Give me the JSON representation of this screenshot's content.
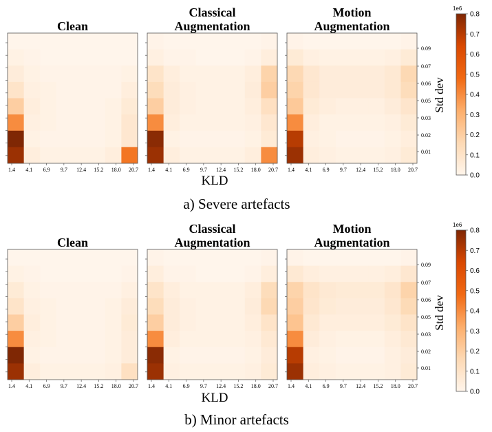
{
  "figure": {
    "subfigures": [
      {
        "caption": "a) Severe artefacts"
      },
      {
        "caption": "b) Minor artefacts"
      }
    ],
    "xlabel": "KLD",
    "ylabel": "Std dev",
    "colorbar_label": "1e6",
    "colorbar_ticks": [
      "0.0",
      "0.1",
      "0.2",
      "0.3",
      "0.4",
      "0.5",
      "0.6",
      "0.7",
      "0.8"
    ],
    "colors": {
      "low": "#fff5eb",
      "mid": "#f98e45",
      "high": "#7f2704",
      "frame": "#555555"
    }
  },
  "chart_data": [
    {
      "type": "heatmap",
      "title": "Clean",
      "group": "a) Severe artefacts",
      "xlabel": "KLD",
      "ylabel": "",
      "x_ticks": [
        "1.4",
        "4.1",
        "6.9",
        "9.7",
        "12.4",
        "15.2",
        "18.0",
        "20.7"
      ],
      "y_ticks": [],
      "colorbar": {
        "range": [
          0,
          0.8
        ],
        "scale_label": "1e6"
      },
      "rows_top_to_bottom": [
        [
          0.0,
          0.0,
          0.0,
          0.0,
          0.0,
          0.0,
          0.0,
          0.0
        ],
        [
          0.02,
          0.01,
          0.0,
          0.0,
          0.0,
          0.0,
          0.0,
          0.0
        ],
        [
          0.05,
          0.02,
          0.01,
          0.01,
          0.01,
          0.01,
          0.01,
          0.02
        ],
        [
          0.1,
          0.03,
          0.02,
          0.01,
          0.01,
          0.01,
          0.01,
          0.04
        ],
        [
          0.2,
          0.04,
          0.02,
          0.01,
          0.01,
          0.01,
          0.02,
          0.06
        ],
        [
          0.4,
          0.03,
          0.02,
          0.01,
          0.01,
          0.01,
          0.02,
          0.08
        ],
        [
          0.8,
          0.02,
          0.01,
          0.01,
          0.01,
          0.01,
          0.02,
          0.08
        ],
        [
          0.75,
          0.04,
          0.02,
          0.02,
          0.02,
          0.02,
          0.04,
          0.45
        ]
      ]
    },
    {
      "type": "heatmap",
      "title": "Classical Augmentation",
      "group": "a) Severe artefacts",
      "xlabel": "KLD",
      "ylabel": "",
      "x_ticks": [
        "1.4",
        "4.1",
        "6.9",
        "9.7",
        "12.4",
        "15.2",
        "18.0",
        "20.7"
      ],
      "y_ticks": [],
      "colorbar": {
        "range": [
          0,
          0.8
        ],
        "scale_label": "1e6"
      },
      "rows_top_to_bottom": [
        [
          0.01,
          0.0,
          0.0,
          0.0,
          0.0,
          0.0,
          0.0,
          0.01
        ],
        [
          0.03,
          0.01,
          0.01,
          0.0,
          0.0,
          0.0,
          0.01,
          0.04
        ],
        [
          0.1,
          0.04,
          0.02,
          0.02,
          0.02,
          0.02,
          0.04,
          0.18
        ],
        [
          0.14,
          0.05,
          0.03,
          0.02,
          0.02,
          0.02,
          0.05,
          0.2
        ],
        [
          0.2,
          0.05,
          0.03,
          0.02,
          0.02,
          0.02,
          0.04,
          0.12
        ],
        [
          0.4,
          0.04,
          0.02,
          0.02,
          0.02,
          0.02,
          0.03,
          0.08
        ],
        [
          0.78,
          0.02,
          0.01,
          0.01,
          0.01,
          0.01,
          0.02,
          0.06
        ],
        [
          0.75,
          0.04,
          0.02,
          0.02,
          0.02,
          0.02,
          0.04,
          0.4
        ]
      ]
    },
    {
      "type": "heatmap",
      "title": "Motion Augmentation",
      "group": "a) Severe artefacts",
      "xlabel": "KLD",
      "ylabel": "Std dev",
      "x_ticks": [
        "1.4",
        "4.1",
        "6.9",
        "9.7",
        "12.4",
        "15.2",
        "18.0",
        "20.7"
      ],
      "y_ticks": [
        "0.09",
        "0.07",
        "0.06",
        "0.05",
        "0.03",
        "0.02",
        "0.01"
      ],
      "colorbar": {
        "range": [
          0,
          0.8
        ],
        "scale_label": "1e6"
      },
      "rows_top_to_bottom": [
        [
          0.01,
          0.0,
          0.0,
          0.0,
          0.0,
          0.0,
          0.0,
          0.01
        ],
        [
          0.06,
          0.03,
          0.02,
          0.02,
          0.02,
          0.02,
          0.03,
          0.06
        ],
        [
          0.16,
          0.08,
          0.05,
          0.05,
          0.05,
          0.05,
          0.07,
          0.16
        ],
        [
          0.18,
          0.08,
          0.05,
          0.05,
          0.05,
          0.05,
          0.07,
          0.14
        ],
        [
          0.22,
          0.06,
          0.04,
          0.03,
          0.03,
          0.03,
          0.05,
          0.09
        ],
        [
          0.4,
          0.04,
          0.02,
          0.02,
          0.02,
          0.02,
          0.03,
          0.06
        ],
        [
          0.7,
          0.03,
          0.02,
          0.01,
          0.01,
          0.01,
          0.02,
          0.04
        ],
        [
          0.75,
          0.04,
          0.03,
          0.02,
          0.02,
          0.02,
          0.03,
          0.06
        ]
      ]
    },
    {
      "type": "heatmap",
      "title": "Clean",
      "group": "b) Minor artefacts",
      "xlabel": "KLD",
      "ylabel": "",
      "x_ticks": [
        "1.4",
        "4.1",
        "6.9",
        "9.7",
        "12.4",
        "15.2",
        "18.0",
        "20.7"
      ],
      "y_ticks": [],
      "colorbar": {
        "range": [
          0,
          0.8
        ],
        "scale_label": "1e6"
      },
      "rows_top_to_bottom": [
        [
          0.0,
          0.0,
          0.0,
          0.0,
          0.0,
          0.0,
          0.0,
          0.0
        ],
        [
          0.02,
          0.01,
          0.0,
          0.0,
          0.0,
          0.0,
          0.0,
          0.01
        ],
        [
          0.06,
          0.02,
          0.01,
          0.01,
          0.01,
          0.01,
          0.01,
          0.03
        ],
        [
          0.1,
          0.03,
          0.02,
          0.01,
          0.01,
          0.01,
          0.02,
          0.05
        ],
        [
          0.2,
          0.04,
          0.02,
          0.01,
          0.01,
          0.01,
          0.02,
          0.06
        ],
        [
          0.4,
          0.03,
          0.02,
          0.01,
          0.01,
          0.01,
          0.02,
          0.05
        ],
        [
          0.8,
          0.02,
          0.01,
          0.01,
          0.01,
          0.01,
          0.02,
          0.05
        ],
        [
          0.75,
          0.04,
          0.02,
          0.02,
          0.02,
          0.02,
          0.03,
          0.12
        ]
      ]
    },
    {
      "type": "heatmap",
      "title": "Classical Augmentation",
      "group": "b) Minor artefacts",
      "xlabel": "KLD",
      "ylabel": "",
      "x_ticks": [
        "1.4",
        "4.1",
        "6.9",
        "9.7",
        "12.4",
        "15.2",
        "18.0",
        "20.7"
      ],
      "y_ticks": [],
      "colorbar": {
        "range": [
          0,
          0.8
        ],
        "scale_label": "1e6"
      },
      "rows_top_to_bottom": [
        [
          0.01,
          0.0,
          0.0,
          0.0,
          0.0,
          0.0,
          0.0,
          0.01
        ],
        [
          0.04,
          0.01,
          0.01,
          0.0,
          0.0,
          0.0,
          0.01,
          0.04
        ],
        [
          0.1,
          0.04,
          0.02,
          0.02,
          0.02,
          0.02,
          0.04,
          0.14
        ],
        [
          0.14,
          0.05,
          0.03,
          0.02,
          0.02,
          0.02,
          0.05,
          0.16
        ],
        [
          0.2,
          0.05,
          0.03,
          0.02,
          0.02,
          0.02,
          0.04,
          0.1
        ],
        [
          0.4,
          0.04,
          0.02,
          0.02,
          0.02,
          0.02,
          0.03,
          0.07
        ],
        [
          0.78,
          0.02,
          0.01,
          0.01,
          0.01,
          0.01,
          0.02,
          0.05
        ],
        [
          0.75,
          0.03,
          0.02,
          0.02,
          0.02,
          0.02,
          0.03,
          0.06
        ]
      ]
    },
    {
      "type": "heatmap",
      "title": "Motion Augmentation",
      "group": "b) Minor artefacts",
      "xlabel": "KLD",
      "ylabel": "Std dev",
      "x_ticks": [
        "1.4",
        "4.1",
        "6.9",
        "9.7",
        "12.4",
        "15.2",
        "18.0",
        "20.7"
      ],
      "y_ticks": [
        "0.09",
        "0.07",
        "0.06",
        "0.05",
        "0.03",
        "0.02",
        "0.01"
      ],
      "colorbar": {
        "range": [
          0,
          0.8
        ],
        "scale_label": "1e6"
      },
      "rows_top_to_bottom": [
        [
          0.01,
          0.0,
          0.0,
          0.0,
          0.0,
          0.0,
          0.0,
          0.01
        ],
        [
          0.07,
          0.04,
          0.03,
          0.03,
          0.03,
          0.03,
          0.04,
          0.08
        ],
        [
          0.18,
          0.1,
          0.07,
          0.06,
          0.06,
          0.06,
          0.09,
          0.18
        ],
        [
          0.2,
          0.09,
          0.06,
          0.05,
          0.05,
          0.05,
          0.08,
          0.15
        ],
        [
          0.24,
          0.07,
          0.04,
          0.04,
          0.04,
          0.04,
          0.06,
          0.1
        ],
        [
          0.4,
          0.05,
          0.03,
          0.02,
          0.02,
          0.02,
          0.04,
          0.07
        ],
        [
          0.7,
          0.03,
          0.02,
          0.01,
          0.01,
          0.01,
          0.03,
          0.05
        ],
        [
          0.75,
          0.04,
          0.03,
          0.02,
          0.02,
          0.02,
          0.03,
          0.06
        ]
      ]
    }
  ]
}
